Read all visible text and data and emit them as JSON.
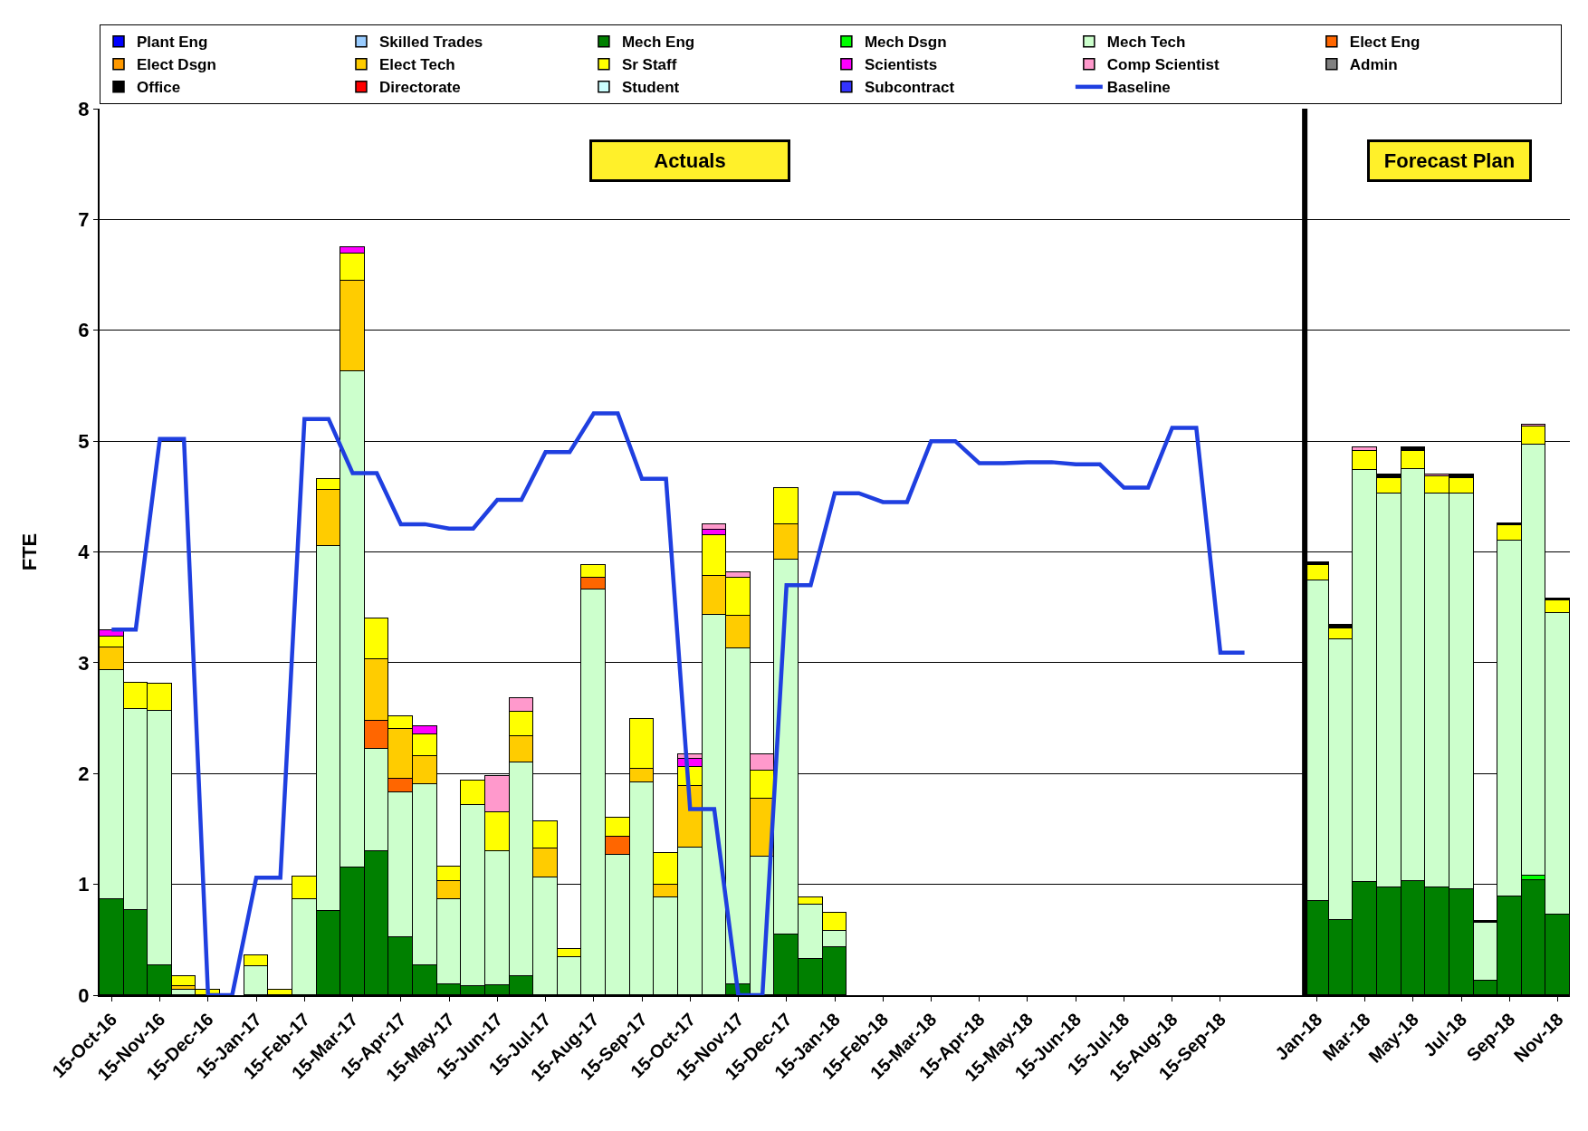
{
  "chart_data": {
    "type": "bar",
    "stacked": true,
    "ylabel": "FTE",
    "ylim": [
      0,
      8
    ],
    "yticks": [
      0,
      1,
      2,
      3,
      4,
      5,
      6,
      7,
      8
    ],
    "grid": "y",
    "legend": "top",
    "annotations": [
      "Actuals",
      "Forecast Plan"
    ],
    "ref_lines": [
      {
        "axis": "x",
        "value": "Jan-18",
        "color": "#000000"
      }
    ],
    "categories": [
      "15-Oct-16",
      null,
      "15-Nov-16",
      null,
      "15-Dec-16",
      null,
      "15-Jan-17",
      null,
      "15-Feb-17",
      null,
      "15-Mar-17",
      null,
      "15-Apr-17",
      null,
      "15-May-17",
      null,
      "15-Jun-17",
      null,
      "15-Jul-17",
      null,
      "15-Aug-17",
      null,
      "15-Sep-17",
      null,
      "15-Oct-17",
      null,
      "15-Nov-17",
      null,
      "15-Dec-17",
      null,
      "15-Jan-18",
      null,
      "15-Feb-18",
      null,
      "15-Mar-18",
      null,
      "15-Apr-18",
      null,
      "15-May-18",
      null,
      "15-Jun-18",
      null,
      "15-Jul-18",
      null,
      "15-Aug-18",
      null,
      "15-Sep-18",
      null,
      null,
      null,
      "Jan-18",
      null,
      "Mar-18",
      null,
      "May-18",
      null,
      "Jul-18",
      null,
      "Sep-18",
      null,
      "Nov-18"
    ],
    "series": [
      {
        "name": "Plant Eng",
        "color": "#0000ff",
        "values": [
          null,
          null,
          null,
          null,
          null,
          null,
          null,
          null,
          null,
          null,
          null,
          null,
          null,
          null,
          null,
          null,
          null,
          null,
          null,
          null,
          null,
          null,
          null,
          null,
          null,
          null,
          null,
          null,
          null,
          null,
          null,
          null,
          null,
          null,
          null,
          null,
          null,
          null,
          null,
          null,
          null,
          null,
          null,
          null,
          null,
          null,
          null,
          null,
          null,
          null,
          null,
          null,
          null,
          null,
          null,
          null,
          null,
          null,
          null,
          null,
          null
        ]
      },
      {
        "name": "Skilled Trades",
        "color": "#99ccff",
        "values": [
          null,
          null,
          null,
          null,
          null,
          null,
          null,
          null,
          null,
          null,
          null,
          null,
          null,
          null,
          null,
          null,
          null,
          null,
          null,
          null,
          null,
          null,
          null,
          null,
          null,
          null,
          null,
          null,
          null,
          null,
          null,
          null,
          null,
          null,
          null,
          null,
          null,
          null,
          null,
          null,
          null,
          null,
          null,
          null,
          null,
          null,
          null,
          null,
          null,
          null,
          null,
          null,
          null,
          null,
          null,
          null,
          null,
          null,
          null,
          null,
          null
        ]
      },
      {
        "name": "Mech Eng",
        "color": "#008000",
        "values": [
          0.87,
          0.77,
          0.27,
          null,
          null,
          null,
          null,
          null,
          null,
          0.76,
          1.15,
          1.3,
          0.52,
          0.27,
          0.1,
          0.08,
          0.09,
          0.17,
          null,
          null,
          null,
          null,
          null,
          null,
          null,
          null,
          0.1,
          null,
          0.55,
          0.33,
          0.43,
          null,
          null,
          null,
          null,
          null,
          null,
          null,
          null,
          null,
          null,
          null,
          null,
          null,
          null,
          null,
          null,
          null,
          null,
          null,
          0.85,
          0.68,
          1.02,
          0.97,
          1.03,
          0.97,
          0.96,
          0.13,
          0.89,
          1.04,
          0.73
        ]
      },
      {
        "name": "Mech Dsgn",
        "color": "#00ff00",
        "values": [
          null,
          null,
          null,
          null,
          null,
          null,
          null,
          null,
          null,
          null,
          null,
          null,
          null,
          null,
          null,
          null,
          null,
          null,
          null,
          null,
          null,
          null,
          null,
          null,
          null,
          null,
          null,
          null,
          null,
          null,
          null,
          null,
          null,
          null,
          null,
          null,
          null,
          null,
          null,
          null,
          null,
          null,
          null,
          null,
          null,
          null,
          null,
          null,
          null,
          null,
          null,
          null,
          null,
          null,
          null,
          null,
          null,
          null,
          null,
          0.04,
          null
        ]
      },
      {
        "name": "Mech Tech",
        "color": "#ccffcc",
        "values": [
          2.06,
          1.81,
          2.3,
          0.05,
          null,
          null,
          0.26,
          null,
          0.87,
          3.29,
          4.48,
          0.92,
          1.31,
          1.63,
          0.77,
          1.64,
          1.21,
          1.93,
          1.06,
          0.34,
          3.66,
          1.27,
          1.92,
          0.88,
          1.33,
          3.43,
          3.03,
          1.25,
          3.38,
          0.49,
          0.15,
          null,
          null,
          null,
          null,
          null,
          null,
          null,
          null,
          null,
          null,
          null,
          null,
          null,
          null,
          null,
          null,
          null,
          null,
          null,
          2.89,
          2.53,
          3.72,
          3.56,
          3.72,
          3.56,
          3.57,
          0.52,
          3.21,
          3.89,
          2.72
        ]
      },
      {
        "name": "Elect Eng",
        "color": "#ff6600",
        "values": [
          null,
          null,
          null,
          null,
          null,
          null,
          null,
          null,
          null,
          null,
          null,
          0.26,
          0.12,
          null,
          null,
          null,
          null,
          null,
          null,
          null,
          0.11,
          0.16,
          null,
          null,
          null,
          null,
          null,
          null,
          null,
          null,
          null,
          null,
          null,
          null,
          null,
          null,
          null,
          null,
          null,
          null,
          null,
          null,
          null,
          null,
          null,
          null,
          null,
          null,
          null,
          null,
          null,
          null,
          null,
          null,
          null,
          null,
          null,
          null,
          null,
          null,
          null
        ]
      },
      {
        "name": "Elect Dsgn",
        "color": "#ff9900",
        "values": [
          null,
          null,
          null,
          null,
          null,
          null,
          null,
          null,
          null,
          null,
          null,
          null,
          null,
          null,
          null,
          null,
          null,
          null,
          null,
          null,
          null,
          null,
          null,
          null,
          null,
          null,
          null,
          null,
          null,
          null,
          null,
          null,
          null,
          null,
          null,
          null,
          null,
          null,
          null,
          null,
          null,
          null,
          null,
          null,
          null,
          null,
          null,
          null,
          null,
          null,
          null,
          null,
          null,
          null,
          null,
          null,
          null,
          null,
          null,
          null,
          null
        ]
      },
      {
        "name": "Elect Tech",
        "color": "#ffcc00",
        "values": [
          0.21,
          null,
          null,
          0.03,
          null,
          null,
          null,
          null,
          null,
          0.51,
          0.82,
          0.55,
          0.45,
          0.26,
          0.16,
          null,
          null,
          0.24,
          0.26,
          null,
          null,
          null,
          0.12,
          0.12,
          0.56,
          0.35,
          0.29,
          0.52,
          0.32,
          null,
          null,
          null,
          null,
          null,
          null,
          null,
          null,
          null,
          null,
          null,
          null,
          null,
          null,
          null,
          null,
          null,
          null,
          null,
          null,
          null,
          null,
          null,
          null,
          null,
          null,
          null,
          null,
          null,
          null,
          null,
          null
        ]
      },
      {
        "name": "Sr Staff",
        "color": "#ffff00",
        "values": [
          0.1,
          0.24,
          0.24,
          0.09,
          0.05,
          null,
          0.1,
          0.05,
          0.2,
          0.1,
          0.24,
          0.37,
          0.12,
          0.19,
          0.13,
          0.22,
          0.35,
          0.22,
          0.25,
          0.08,
          0.11,
          0.17,
          0.45,
          0.28,
          0.17,
          0.37,
          0.35,
          0.26,
          0.33,
          0.06,
          0.16,
          null,
          null,
          null,
          null,
          null,
          null,
          null,
          null,
          null,
          null,
          null,
          null,
          null,
          null,
          null,
          null,
          null,
          null,
          null,
          0.14,
          0.1,
          0.17,
          0.14,
          0.16,
          0.15,
          0.14,
          null,
          0.14,
          0.16,
          0.11
        ]
      },
      {
        "name": "Scientists",
        "color": "#ff00ff",
        "values": [
          0.05,
          null,
          null,
          null,
          null,
          null,
          null,
          null,
          null,
          null,
          0.06,
          null,
          null,
          0.08,
          null,
          null,
          null,
          null,
          null,
          null,
          null,
          null,
          null,
          null,
          0.07,
          0.05,
          null,
          null,
          null,
          null,
          null,
          null,
          null,
          null,
          null,
          null,
          null,
          null,
          null,
          null,
          null,
          null,
          null,
          null,
          null,
          null,
          null,
          null,
          null,
          null,
          null,
          null,
          null,
          null,
          null,
          null,
          null,
          null,
          null,
          null,
          null
        ]
      },
      {
        "name": "Comp Scientist",
        "color": "#ff99cc",
        "values": [
          null,
          null,
          null,
          null,
          null,
          null,
          null,
          null,
          null,
          null,
          null,
          null,
          null,
          null,
          null,
          null,
          0.33,
          0.12,
          null,
          null,
          null,
          null,
          null,
          null,
          0.04,
          0.05,
          0.05,
          0.14,
          null,
          null,
          null,
          null,
          null,
          null,
          null,
          null,
          null,
          null,
          null,
          null,
          null,
          null,
          null,
          null,
          null,
          null,
          null,
          null,
          null,
          null,
          null,
          null,
          0.03,
          null,
          null,
          0.02,
          null,
          null,
          null,
          0.02,
          null
        ]
      },
      {
        "name": "Admin",
        "color": "#808080",
        "values": [
          null,
          null,
          null,
          null,
          null,
          null,
          null,
          null,
          null,
          null,
          null,
          null,
          null,
          null,
          null,
          null,
          null,
          null,
          null,
          null,
          null,
          null,
          null,
          null,
          null,
          null,
          null,
          null,
          null,
          null,
          null,
          null,
          null,
          null,
          null,
          null,
          null,
          null,
          null,
          null,
          null,
          null,
          null,
          null,
          null,
          null,
          null,
          null,
          null,
          null,
          null,
          null,
          null,
          null,
          null,
          null,
          null,
          null,
          null,
          null,
          null
        ]
      },
      {
        "name": "Office",
        "color": "#000000",
        "values": [
          null,
          null,
          null,
          null,
          null,
          null,
          null,
          null,
          null,
          null,
          null,
          null,
          null,
          null,
          null,
          null,
          null,
          null,
          null,
          null,
          null,
          null,
          null,
          null,
          null,
          null,
          null,
          null,
          null,
          null,
          null,
          null,
          null,
          null,
          null,
          null,
          null,
          null,
          null,
          null,
          null,
          null,
          null,
          null,
          null,
          null,
          null,
          null,
          null,
          null,
          0.03,
          0.03,
          null,
          0.03,
          0.03,
          null,
          0.03,
          0.02,
          0.02,
          null,
          0.02
        ]
      },
      {
        "name": "Directorate",
        "color": "#ff0000",
        "values": [
          null,
          null,
          null,
          null,
          null,
          null,
          null,
          null,
          null,
          null,
          null,
          null,
          null,
          null,
          null,
          null,
          null,
          null,
          null,
          null,
          null,
          null,
          null,
          null,
          null,
          null,
          null,
          null,
          null,
          null,
          null,
          null,
          null,
          null,
          null,
          null,
          null,
          null,
          null,
          null,
          null,
          null,
          null,
          null,
          null,
          null,
          null,
          null,
          null,
          null,
          null,
          null,
          null,
          null,
          null,
          null,
          null,
          null,
          null,
          null,
          null
        ]
      },
      {
        "name": "Student",
        "color": "#ccffff",
        "values": [
          null,
          null,
          null,
          null,
          null,
          null,
          null,
          null,
          null,
          null,
          null,
          null,
          null,
          null,
          null,
          null,
          null,
          null,
          null,
          null,
          null,
          null,
          null,
          null,
          null,
          null,
          null,
          null,
          null,
          null,
          null,
          null,
          null,
          null,
          null,
          null,
          null,
          null,
          null,
          null,
          null,
          null,
          null,
          null,
          null,
          null,
          null,
          null,
          null,
          null,
          null,
          null,
          null,
          null,
          null,
          null,
          null,
          null,
          null,
          null,
          null
        ]
      },
      {
        "name": "Subcontract",
        "color": "#3333ff",
        "values": [
          null,
          null,
          null,
          null,
          null,
          null,
          null,
          null,
          null,
          null,
          null,
          null,
          null,
          null,
          null,
          null,
          null,
          null,
          null,
          null,
          null,
          null,
          null,
          null,
          null,
          null,
          null,
          null,
          null,
          null,
          null,
          null,
          null,
          null,
          null,
          null,
          null,
          null,
          null,
          null,
          null,
          null,
          null,
          null,
          null,
          null,
          null,
          null,
          null,
          null,
          null,
          null,
          null,
          null,
          null,
          null,
          null,
          null,
          null,
          null,
          null
        ]
      },
      {
        "name": "Baseline",
        "type": "line",
        "color": "#1f3fe0",
        "marker": "none",
        "line_style": "solid",
        "values": [
          3.3,
          3.3,
          5.02,
          5.02,
          0,
          0,
          1.06,
          1.06,
          5.2,
          5.2,
          4.71,
          4.71,
          4.25,
          4.25,
          4.21,
          4.21,
          4.47,
          4.47,
          4.9,
          4.9,
          5.25,
          5.25,
          4.66,
          4.66,
          1.68,
          1.68,
          0,
          0,
          3.7,
          3.7,
          4.53,
          4.53,
          4.45,
          4.45,
          5.0,
          5.0,
          4.8,
          4.8,
          4.81,
          4.81,
          4.79,
          4.79,
          4.58,
          4.58,
          5.12,
          5.12,
          3.09,
          3.09,
          null,
          null,
          null,
          null,
          null,
          null,
          null,
          null,
          null,
          null,
          null,
          null,
          null
        ]
      }
    ]
  }
}
